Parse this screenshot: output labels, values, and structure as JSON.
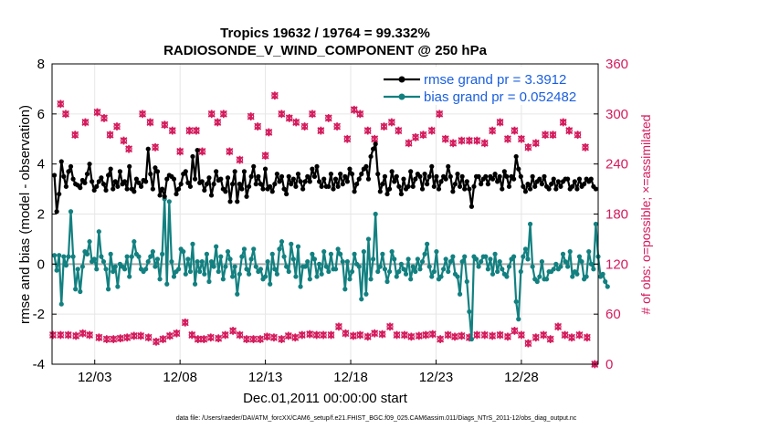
{
  "chart_data": {
    "type": "line",
    "title": "Tropics 19632 / 19764 = 99.332%",
    "subtitle": "RADIOSONDE_V_WIND_COMPONENT @ 250 hPa",
    "xlabel": "Dec.01,2011 00:00:00 start",
    "ylabel": "rmse and bias (model - observation)",
    "y2label": "# of obs: o=possible; ×=assimilated",
    "footnote": "data file: /Users/raeder/DAI/ATM_forcXX/CAM6_setup/f.e21.FHIST_BGC.f09_025.CAM6assim.011/Diags_NTrS_2011-12/obs_diag_output.nc",
    "xlim": [
      0.5,
      32.5
    ],
    "ylim": [
      -4,
      8
    ],
    "y2lim": [
      0,
      360
    ],
    "grid": true,
    "legend_position": "top-right",
    "x_ticks": [
      {
        "value": 3,
        "label": "12/03"
      },
      {
        "value": 8,
        "label": "12/08"
      },
      {
        "value": 13,
        "label": "12/13"
      },
      {
        "value": 18,
        "label": "12/18"
      },
      {
        "value": 23,
        "label": "12/23"
      },
      {
        "value": 28,
        "label": "12/28"
      }
    ],
    "y_ticks": [
      "-4",
      "-2",
      "0",
      "2",
      "4",
      "6",
      "8"
    ],
    "y2_ticks": [
      "0",
      "60",
      "120",
      "180",
      "240",
      "300",
      "360"
    ],
    "colors": {
      "rmse": "#000000",
      "bias": "#138080",
      "obs": "#d41a5c",
      "legend_text": "#1a5fe0",
      "zero_line": "#aaaaaa",
      "grid": "#e6e6e6"
    },
    "series": [
      {
        "name": "rmse grand pr = 3.3912",
        "key": "rmse",
        "values": [
          3.55,
          2.1,
          2.8,
          4.1,
          3.5,
          3.1,
          3.7,
          3.9,
          3.4,
          3.2,
          3.15,
          3.05,
          3.35,
          3.25,
          3.6,
          4.0,
          3.3,
          2.95,
          3.1,
          3.3,
          3.45,
          3.2,
          2.95,
          3.55,
          3.8,
          3.0,
          3.3,
          3.1,
          3.7,
          3.2,
          3.3,
          3.0,
          3.9,
          3.0,
          2.9,
          3.4,
          3.25,
          3.1,
          3.35,
          3.3,
          4.6,
          3.6,
          3.0,
          3.85,
          3.7,
          2.75,
          3.0,
          2.7,
          3.4,
          3.55,
          3.5,
          3.4,
          2.8,
          3.0,
          3.2,
          3.6,
          3.7,
          3.25,
          3.1,
          4.3,
          3.4,
          4.55,
          3.25,
          3.3,
          2.95,
          3.2,
          3.45,
          2.75,
          3.2,
          3.7,
          3.35,
          3.4,
          3.0,
          2.9,
          3.45,
          2.5,
          3.2,
          3.7,
          2.5,
          3.2,
          3.0,
          3.7,
          2.7,
          3.1,
          3.5,
          3.9,
          3.2,
          3.5,
          3.2,
          3.0,
          3.8,
          3.0,
          3.1,
          2.9,
          3.2,
          3.6,
          3.3,
          3.5,
          3.0,
          2.8,
          3.5,
          3.2,
          3.4,
          3.1,
          3.6,
          3.3,
          3.0,
          3.3,
          3.5,
          3.3,
          3.8,
          3.5,
          3.9,
          3.3,
          3.1,
          3.4,
          3.1,
          3.1,
          3.6,
          3.0,
          3.4,
          3.1,
          3.6,
          3.2,
          3.5,
          3.3,
          3.8,
          3.6,
          2.9,
          3.2,
          3.4,
          3.6,
          3.8,
          3.9,
          3.4,
          4.3,
          4.6,
          4.8,
          3.6,
          2.9,
          3.2,
          3.5,
          2.8,
          3.0,
          3.7,
          3.3,
          3.5,
          3.1,
          2.8,
          3.4,
          3.0,
          3.1,
          3.7,
          3.1,
          3.4,
          3.6,
          3.5,
          3.0,
          3.6,
          3.2,
          3.5,
          3.9,
          3.1,
          3.5,
          3.0,
          3.3,
          3.5,
          3.4,
          3.9,
          3.5,
          2.9,
          3.2,
          3.6,
          3.1,
          3.5,
          3.0,
          3.3,
          3.0,
          2.3,
          3.1,
          3.5,
          3.5,
          3.2,
          3.4,
          3.5,
          3.2,
          3.5,
          3.4,
          3.6,
          3.3,
          3.5,
          3.0,
          3.7,
          3.5,
          3.1,
          3.5,
          3.4,
          4.3,
          3.8,
          3.5,
          3.1,
          2.9,
          3.2,
          3.0,
          3.5,
          3.1,
          3.3,
          3.4,
          3.2,
          3.5,
          3.1,
          3.0,
          3.2,
          3.4,
          3.0,
          3.3,
          3.1,
          3.3,
          3.4,
          3.4,
          3.0,
          3.1,
          3.3,
          3.0,
          3.4,
          3.1,
          3.2,
          3.4,
          3.3,
          3.4,
          3.1,
          3.0
        ]
      },
      {
        "name": "bias grand pr = 0.052482",
        "key": "bias",
        "values": [
          0.35,
          -0.25,
          0.35,
          -1.6,
          0.3,
          -0.05,
          0.3,
          2.1,
          0.3,
          -1.0,
          -0.2,
          -1.1,
          -0.1,
          0.5,
          0.4,
          0.9,
          0.1,
          0.2,
          -0.2,
          1.3,
          0.3,
          0.1,
          -0.2,
          -1.0,
          0.4,
          -0.3,
          -0.1,
          -0.9,
          0.0,
          -0.1,
          -0.2,
          0.3,
          -0.5,
          0.3,
          0.9,
          0.4,
          0.3,
          -0.2,
          -0.3,
          -0.2,
          0.1,
          0.3,
          0.5,
          -0.1,
          0.2,
          -0.6,
          0.4,
          2.6,
          -0.8,
          2.5,
          0.1,
          -0.5,
          -0.3,
          -0.2,
          0.6,
          0.5,
          -0.4,
          0.2,
          -0.3,
          0.8,
          -0.8,
          0.1,
          -0.3,
          0.1,
          -0.4,
          0.4,
          -0.7,
          0.1,
          -0.1,
          0.7,
          -0.3,
          0.3,
          -0.6,
          -0.1,
          0.5,
          0.2,
          -0.5,
          -0.1,
          -1.2,
          -0.4,
          0.3,
          0.6,
          -0.2,
          -0.4,
          0.2,
          0.6,
          -0.1,
          -0.3,
          -0.2,
          -0.6,
          -0.5,
          0.1,
          -0.8,
          0.4,
          -0.2,
          -0.4,
          0.6,
          0.9,
          0.3,
          -0.1,
          -0.3,
          0.8,
          0.2,
          -0.5,
          0.7,
          -0.9,
          -0.1,
          -0.1,
          0.1,
          -0.6,
          0.4,
          0.2,
          -0.5,
          0.0,
          -0.4,
          0.5,
          -0.1,
          -0.3,
          0.4,
          -0.2,
          -0.2,
          0.6,
          0.4,
          0.1,
          -1.0,
          0.1,
          -0.6,
          -0.3,
          0.4,
          0.0,
          -0.1,
          -1.4,
          0.5,
          -1.2,
          1.0,
          -0.6,
          0.2,
          2.0,
          -0.3,
          -0.1,
          0.4,
          -0.2,
          -0.7,
          -0.3,
          0.5,
          0.2,
          -0.5,
          -0.3,
          0.0,
          -0.2,
          -0.4,
          0.2,
          -0.6,
          -0.1,
          -0.3,
          0.2,
          -0.2,
          0.1,
          0.4,
          0.8,
          -0.1,
          -0.5,
          -0.3,
          0.5,
          -0.6,
          -0.5,
          -0.2,
          0.2,
          -0.3,
          0.1,
          0.3,
          -0.4,
          -0.5,
          -1.2,
          0.1,
          0.3,
          -0.7,
          -1.9,
          -3.0,
          0.3,
          0.2,
          -0.1,
          0.1,
          0.3,
          0.3,
          -0.2,
          0.2,
          -0.4,
          0.4,
          -0.3,
          0.1,
          -0.2,
          -0.4,
          -0.5,
          -0.1,
          0.2,
          0.3,
          -1.5,
          -2.2,
          -0.3,
          0.3,
          0.6,
          0.2,
          1.6,
          -0.1,
          -0.6,
          -0.7,
          -0.5,
          0.1,
          -0.6,
          -0.6,
          -0.3,
          -0.3,
          -0.2,
          0.0,
          -0.2,
          -0.1,
          0.4,
          0.1,
          -0.1,
          0.5,
          -0.5,
          -0.3,
          -0.4,
          0.3,
          0.1,
          -0.6,
          -0.5,
          0.5,
          0.0,
          -0.2,
          1.6,
          0.3,
          -0.5,
          -0.4,
          -0.7,
          -0.9
        ]
      }
    ],
    "obs_possible_label": "o=possible",
    "obs_assimilated_label": "×=assimilated"
  }
}
